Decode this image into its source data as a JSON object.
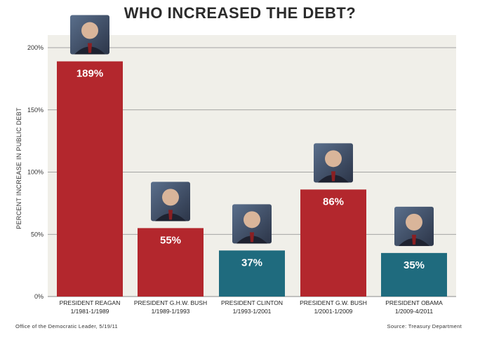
{
  "title": "WHO INCREASED THE DEBT?",
  "footer_left": "Office of the Democratic Leader, 5/19/11",
  "footer_right": "Source: Treasury Department",
  "colors": {
    "red_bar": "#b3272d",
    "teal_bar": "#1f6b7e",
    "plot_bg": "#f0efe9",
    "grid": "#8a8a8a"
  },
  "chart_data": {
    "type": "bar",
    "title": "WHO INCREASED THE DEBT?",
    "ylabel": "PERCENT INCREASE IN PUBLIC DEBT",
    "xlabel": "",
    "ylim": [
      0,
      200
    ],
    "yticks": [
      0,
      50,
      100,
      150,
      200
    ],
    "ytick_labels": [
      "0%",
      "50%",
      "100%",
      "150%",
      "200%"
    ],
    "grid": true,
    "categories": [
      {
        "name": "PRESIDENT REAGAN",
        "term": "1/1981-1/1989",
        "party_color": "red"
      },
      {
        "name": "PRESIDENT G.H.W. BUSH",
        "term": "1/1989-1/1993",
        "party_color": "red"
      },
      {
        "name": "PRESIDENT CLINTON",
        "term": "1/1993-1/2001",
        "party_color": "teal"
      },
      {
        "name": "PRESIDENT G.W. BUSH",
        "term": "1/2001-1/2009",
        "party_color": "red"
      },
      {
        "name": "PRESIDENT OBAMA",
        "term": "1/2009-4/2011",
        "party_color": "teal"
      }
    ],
    "values": [
      189,
      55,
      37,
      86,
      35
    ],
    "data_labels": [
      "189%",
      "55%",
      "37%",
      "86%",
      "35%"
    ],
    "annotations": [
      "portrait photo above each bar"
    ]
  }
}
